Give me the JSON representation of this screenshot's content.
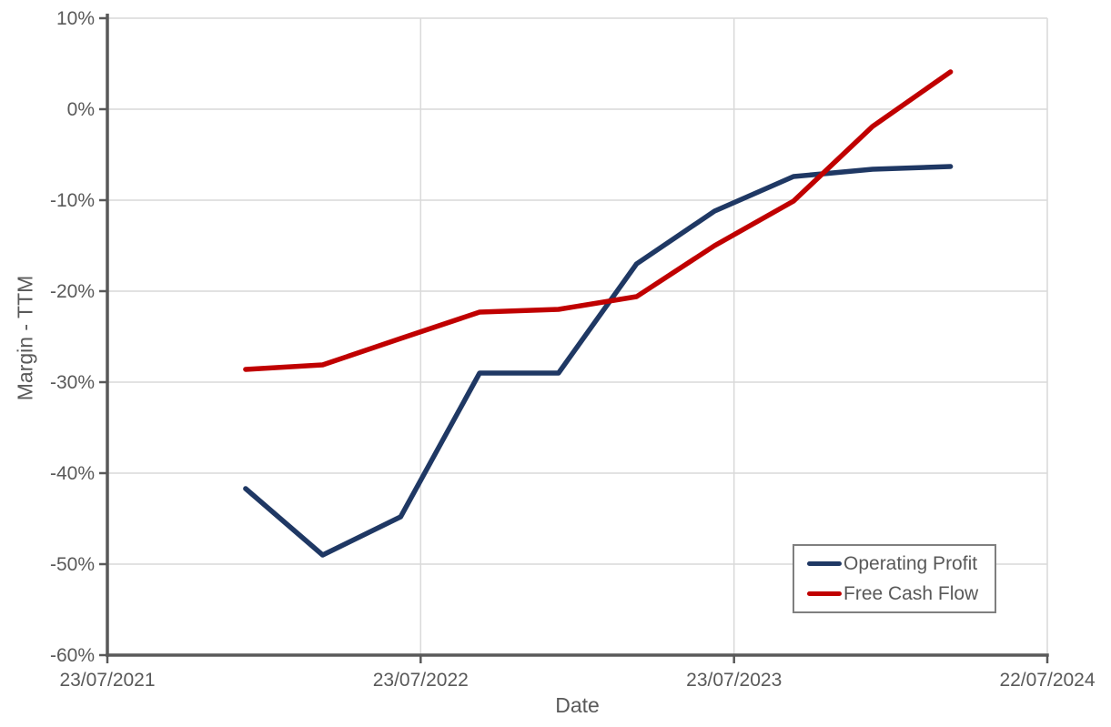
{
  "chart_data": {
    "type": "line",
    "title": "",
    "xlabel": "Date",
    "ylabel": "Margin - TTM",
    "grid": true,
    "legend_position": "bottom-right",
    "x_axis": {
      "ticks": [
        {
          "label": "23/07/2021",
          "pos": 0
        },
        {
          "label": "23/07/2022",
          "pos": 0.3333
        },
        {
          "label": "23/07/2023",
          "pos": 0.6667
        },
        {
          "label": "22/07/2024",
          "pos": 1
        }
      ]
    },
    "y_axis": {
      "ticks": [
        "10%",
        "0%",
        "-10%",
        "-20%",
        "-30%",
        "-40%",
        "-50%",
        "-60%"
      ],
      "max": 10,
      "min": -60,
      "step": 10,
      "unit": "%"
    },
    "series": [
      {
        "name": "Operating Profit",
        "color": "#1f3864",
        "points": [
          {
            "x": 0.147,
            "y": -41.7
          },
          {
            "x": 0.229,
            "y": -49.0
          },
          {
            "x": 0.312,
            "y": -44.8
          },
          {
            "x": 0.396,
            "y": -29.0
          },
          {
            "x": 0.48,
            "y": -29.0
          },
          {
            "x": 0.563,
            "y": -17.0
          },
          {
            "x": 0.646,
            "y": -11.2
          },
          {
            "x": 0.73,
            "y": -7.4
          },
          {
            "x": 0.814,
            "y": -6.6
          },
          {
            "x": 0.897,
            "y": -6.3
          }
        ]
      },
      {
        "name": "Free Cash Flow",
        "color": "#c00000",
        "points": [
          {
            "x": 0.147,
            "y": -28.6
          },
          {
            "x": 0.229,
            "y": -28.1
          },
          {
            "x": 0.312,
            "y": -25.2
          },
          {
            "x": 0.396,
            "y": -22.3
          },
          {
            "x": 0.48,
            "y": -22.0
          },
          {
            "x": 0.563,
            "y": -20.6
          },
          {
            "x": 0.646,
            "y": -15.0
          },
          {
            "x": 0.73,
            "y": -10.1
          },
          {
            "x": 0.814,
            "y": -1.9
          },
          {
            "x": 0.897,
            "y": 4.1
          }
        ]
      }
    ],
    "colors": {
      "axis_text": "#595959",
      "axis_line": "#595959",
      "gridline": "#d9d9d9",
      "legend_border": "#7f7f7f",
      "background": "#ffffff"
    }
  }
}
